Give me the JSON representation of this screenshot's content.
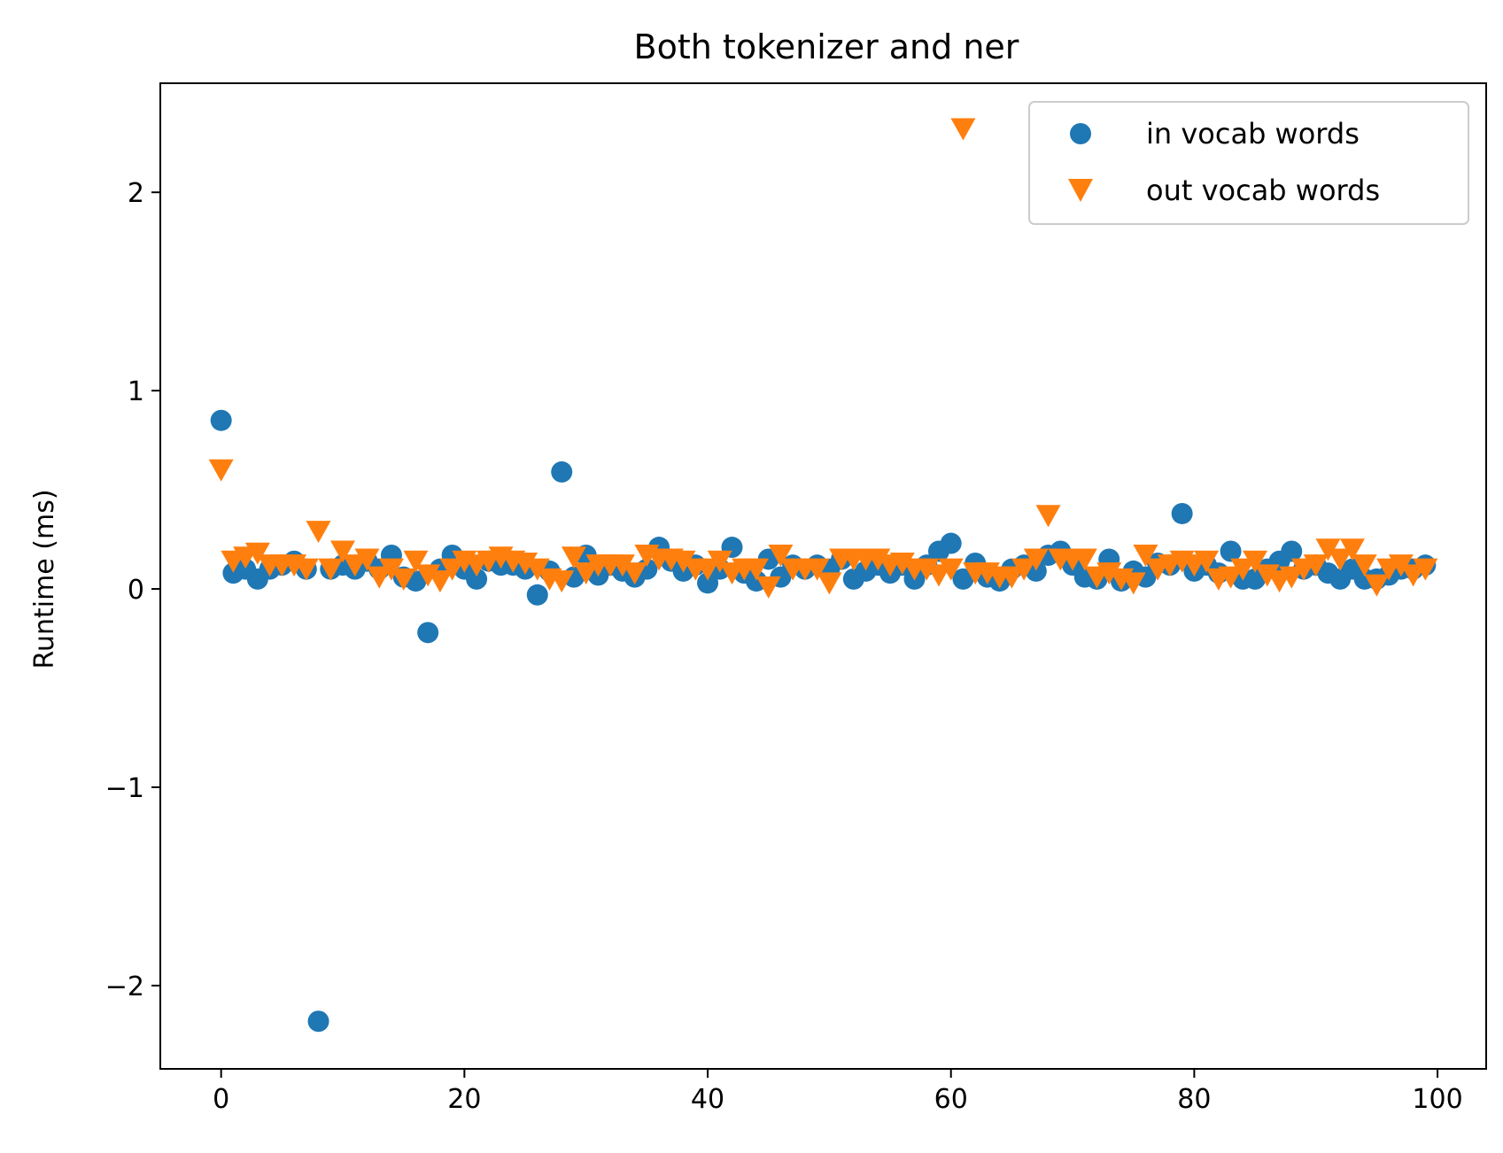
{
  "chart_data": {
    "type": "scatter",
    "title": "Both tokenizer and ner",
    "xlabel": "",
    "ylabel": "Runtime (ms)",
    "xlim": [
      -5,
      104
    ],
    "ylim": [
      -2.42,
      2.55
    ],
    "xticks": [
      0,
      20,
      40,
      60,
      80,
      100
    ],
    "yticks": [
      -2,
      -1,
      0,
      1,
      2
    ],
    "grid": false,
    "legend_position": "top-right",
    "series": [
      {
        "name": "in vocab words",
        "marker": "circle",
        "color": "#1f77b4",
        "x": [
          0,
          1,
          2,
          3,
          4,
          5,
          6,
          7,
          8,
          9,
          10,
          11,
          12,
          13,
          14,
          15,
          16,
          17,
          18,
          19,
          20,
          21,
          22,
          23,
          24,
          25,
          26,
          27,
          28,
          29,
          30,
          31,
          32,
          33,
          34,
          35,
          36,
          37,
          38,
          39,
          40,
          41,
          42,
          43,
          44,
          45,
          46,
          47,
          48,
          49,
          50,
          51,
          52,
          53,
          54,
          55,
          56,
          57,
          58,
          59,
          60,
          61,
          62,
          63,
          64,
          65,
          66,
          67,
          68,
          69,
          70,
          71,
          72,
          73,
          74,
          75,
          76,
          77,
          78,
          79,
          80,
          81,
          82,
          83,
          84,
          85,
          86,
          87,
          88,
          89,
          90,
          91,
          92,
          93,
          94,
          95,
          96,
          97,
          98,
          99
        ],
        "y": [
          0.85,
          0.08,
          0.1,
          0.05,
          0.1,
          0.12,
          0.14,
          0.1,
          -2.18,
          0.1,
          0.12,
          0.1,
          0.14,
          0.1,
          0.17,
          0.06,
          0.04,
          -0.22,
          0.1,
          0.17,
          0.1,
          0.05,
          0.14,
          0.12,
          0.12,
          0.1,
          -0.03,
          0.09,
          0.59,
          0.06,
          0.17,
          0.07,
          0.12,
          0.09,
          0.06,
          0.1,
          0.21,
          0.14,
          0.09,
          0.12,
          0.03,
          0.1,
          0.21,
          0.08,
          0.04,
          0.15,
          0.06,
          0.12,
          0.1,
          0.12,
          0.1,
          0.15,
          0.05,
          0.09,
          0.12,
          0.08,
          0.12,
          0.05,
          0.12,
          0.19,
          0.23,
          0.05,
          0.13,
          0.06,
          0.04,
          0.1,
          0.12,
          0.09,
          0.17,
          0.19,
          0.12,
          0.06,
          0.05,
          0.15,
          0.04,
          0.09,
          0.06,
          0.13,
          0.12,
          0.38,
          0.09,
          0.12,
          0.08,
          0.19,
          0.05,
          0.05,
          0.1,
          0.14,
          0.19,
          0.1,
          0.12,
          0.08,
          0.05,
          0.1,
          0.05,
          0.05,
          0.07,
          0.1,
          0.1,
          0.12
        ]
      },
      {
        "name": "out vocab words",
        "marker": "triangle-down",
        "color": "#ff7f0e",
        "x": [
          0,
          1,
          2,
          3,
          4,
          5,
          6,
          7,
          8,
          9,
          10,
          11,
          12,
          13,
          14,
          15,
          16,
          17,
          18,
          19,
          20,
          21,
          22,
          23,
          24,
          25,
          26,
          27,
          28,
          29,
          30,
          31,
          32,
          33,
          34,
          35,
          36,
          37,
          38,
          39,
          40,
          41,
          42,
          43,
          44,
          45,
          46,
          47,
          48,
          49,
          50,
          51,
          52,
          53,
          54,
          55,
          56,
          57,
          58,
          59,
          60,
          61,
          62,
          63,
          64,
          65,
          66,
          67,
          68,
          69,
          70,
          71,
          72,
          73,
          74,
          75,
          76,
          77,
          78,
          79,
          80,
          81,
          82,
          83,
          84,
          85,
          86,
          87,
          88,
          89,
          90,
          91,
          92,
          93,
          94,
          95,
          96,
          97,
          98,
          99
        ],
        "y": [
          0.6,
          0.14,
          0.16,
          0.18,
          0.12,
          0.12,
          0.12,
          0.1,
          0.29,
          0.1,
          0.19,
          0.12,
          0.15,
          0.06,
          0.1,
          0.05,
          0.14,
          0.07,
          0.04,
          0.1,
          0.14,
          0.12,
          0.14,
          0.16,
          0.14,
          0.13,
          0.1,
          0.05,
          0.04,
          0.16,
          0.08,
          0.12,
          0.12,
          0.12,
          0.08,
          0.17,
          0.15,
          0.15,
          0.14,
          0.1,
          0.1,
          0.14,
          0.08,
          0.1,
          0.1,
          0.01,
          0.17,
          0.1,
          0.1,
          0.1,
          0.03,
          0.15,
          0.15,
          0.15,
          0.15,
          0.12,
          0.13,
          0.1,
          0.1,
          0.07,
          0.1,
          2.32,
          0.08,
          0.08,
          0.06,
          0.06,
          0.1,
          0.15,
          0.37,
          0.15,
          0.15,
          0.15,
          0.06,
          0.08,
          0.05,
          0.03,
          0.17,
          0.1,
          0.12,
          0.14,
          0.12,
          0.14,
          0.05,
          0.06,
          0.1,
          0.14,
          0.07,
          0.04,
          0.06,
          0.1,
          0.12,
          0.2,
          0.15,
          0.2,
          0.12,
          0.02,
          0.1,
          0.12,
          0.07,
          0.1
        ]
      }
    ]
  }
}
